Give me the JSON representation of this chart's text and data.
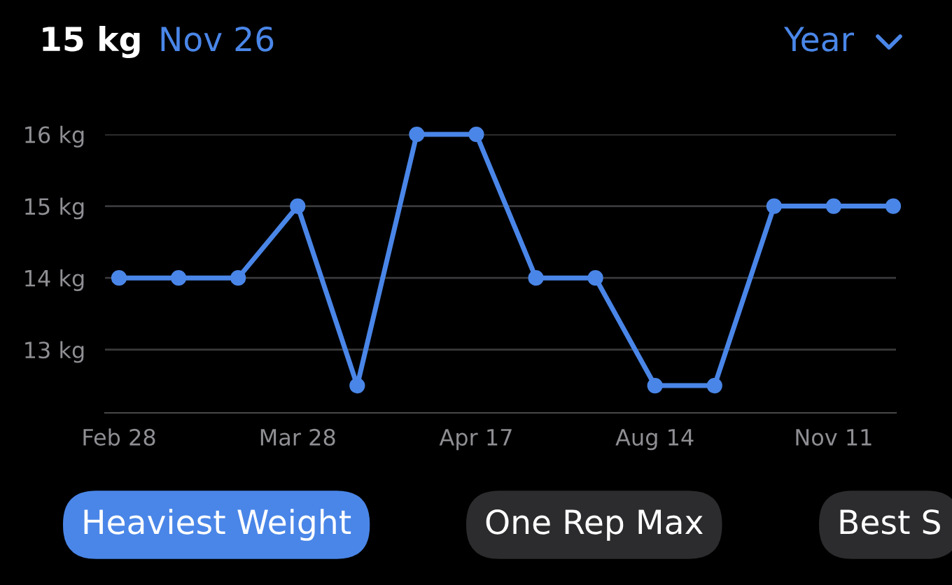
{
  "chart_data": {
    "type": "line",
    "title": "15 kg",
    "subtitle": "Nov 26",
    "categories": [
      "Feb 28",
      null,
      null,
      "Mar 28",
      null,
      null,
      "Apr 17",
      null,
      null,
      "Aug 14",
      null,
      null,
      "Nov 11",
      null
    ],
    "series": [
      {
        "color": "#4a86e8",
        "values": [
          14,
          14,
          14,
          15,
          12.5,
          16,
          16,
          14,
          14,
          12.5,
          12.5,
          15,
          15,
          15
        ]
      }
    ],
    "ylim": [
      12.12,
      16
    ],
    "yticks": [
      {
        "value": 13,
        "label": "13 kg"
      },
      {
        "value": 14,
        "label": "14 kg"
      },
      {
        "value": 15,
        "label": "15 kg"
      },
      {
        "value": 16,
        "label": "16 kg"
      }
    ],
    "grid": "y",
    "marker": "circle",
    "line_style": "solid",
    "legend": false,
    "annotations": [
      "Year",
      "Heaviest Weight",
      "One Rep Max",
      "Best S"
    ]
  }
}
